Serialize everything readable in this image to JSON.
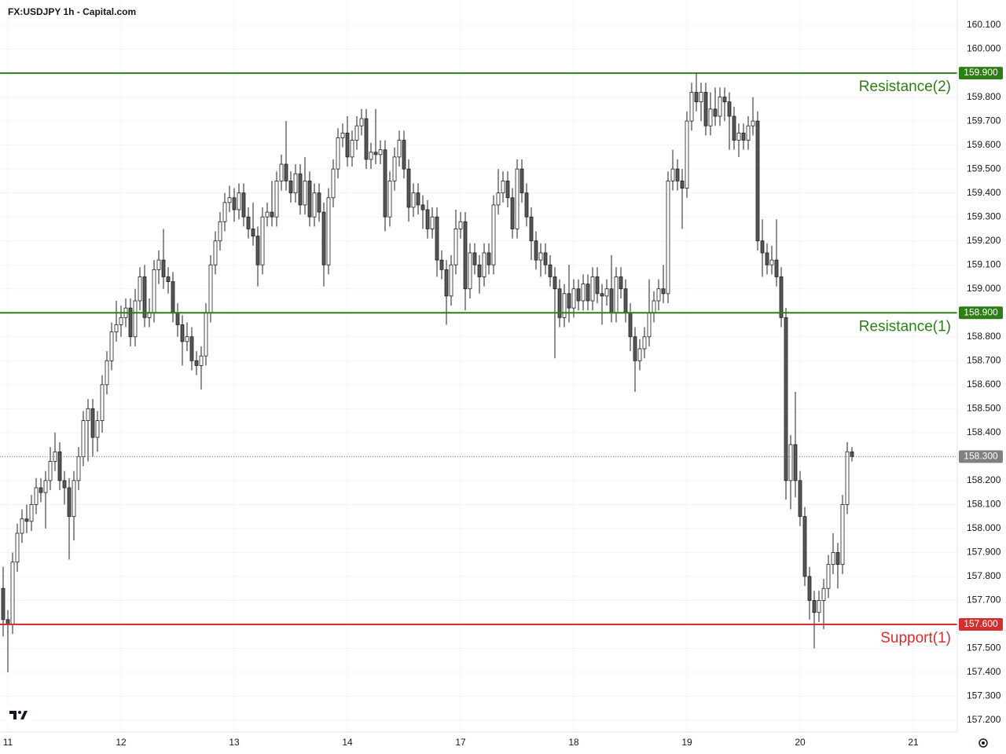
{
  "chart_data": {
    "type": "candlestick",
    "title": "FX:USDJPY 1h - Capital.com",
    "x": [
      -1,
      0,
      1,
      2,
      3,
      4,
      5,
      6,
      7,
      8,
      9,
      10,
      11,
      12,
      13,
      14,
      15,
      16,
      17,
      18,
      19,
      20,
      21,
      22,
      23,
      24,
      25,
      26,
      27,
      28,
      29,
      30,
      31,
      32,
      33,
      34,
      35,
      36,
      37,
      38,
      39,
      40,
      41,
      42,
      43,
      44,
      45,
      46,
      47,
      48,
      49,
      50,
      51,
      52,
      53,
      54,
      55,
      56,
      57,
      58,
      59,
      60,
      61,
      62,
      63,
      64,
      65,
      66,
      67,
      68,
      69,
      70,
      71,
      72,
      73,
      74,
      75,
      76,
      77,
      78,
      79,
      80,
      81,
      82,
      83,
      84,
      85,
      86,
      87,
      88,
      89,
      90,
      91,
      92,
      93,
      94,
      95,
      96,
      97,
      98,
      99,
      100,
      101,
      102,
      103,
      104,
      105,
      106,
      107,
      108,
      109,
      110,
      111,
      112,
      113,
      114,
      115,
      116,
      117,
      118,
      119,
      120,
      121,
      122,
      123,
      124,
      125,
      126,
      127,
      128,
      129,
      130,
      131,
      132,
      133,
      134,
      135,
      136,
      137,
      138,
      139,
      140,
      141,
      142,
      143,
      144,
      145,
      146,
      147,
      148,
      149,
      150,
      151,
      152,
      153,
      154,
      155,
      156,
      157,
      158,
      159,
      160,
      161,
      162,
      163,
      164,
      165,
      166,
      167,
      168,
      169,
      170,
      171,
      172,
      173,
      174,
      175,
      176,
      177,
      178,
      179
    ],
    "open": [
      157.75,
      157.62,
      157.6,
      157.86,
      157.98,
      158.04,
      158.03,
      158.1,
      158.17,
      158.15,
      158.2,
      158.28,
      158.32,
      158.2,
      158.17,
      158.05,
      158.2,
      158.3,
      158.45,
      158.5,
      158.38,
      158.45,
      158.6,
      158.7,
      158.82,
      158.85,
      158.88,
      158.92,
      158.8,
      158.95,
      159.05,
      158.88,
      158.9,
      159.08,
      159.12,
      159.05,
      159.03,
      158.9,
      158.85,
      158.78,
      158.8,
      158.7,
      158.68,
      158.72,
      158.9,
      159.1,
      159.2,
      159.28,
      159.36,
      159.38,
      159.33,
      159.4,
      159.3,
      159.25,
      159.22,
      159.1,
      159.3,
      159.32,
      159.3,
      159.45,
      159.52,
      159.45,
      159.4,
      159.48,
      159.35,
      159.45,
      159.3,
      159.4,
      159.32,
      159.1,
      159.38,
      159.5,
      159.63,
      159.65,
      159.55,
      159.62,
      159.68,
      159.71,
      159.54,
      159.57,
      159.56,
      159.58,
      159.3,
      159.45,
      159.55,
      159.62,
      159.5,
      159.34,
      159.4,
      159.35,
      159.33,
      159.25,
      159.3,
      159.12,
      159.08,
      158.97,
      159.1,
      159.25,
      159.28,
      159.0,
      159.15,
      159.1,
      159.05,
      159.15,
      159.1,
      159.35,
      159.4,
      159.45,
      159.38,
      159.25,
      159.5,
      159.4,
      159.3,
      159.2,
      159.12,
      159.15,
      159.1,
      159.05,
      159.0,
      158.88,
      158.98,
      158.92,
      159.0,
      158.95,
      159.02,
      158.95,
      159.05,
      158.98,
      158.97,
      159.0,
      158.9,
      159.05,
      159.0,
      158.9,
      158.8,
      158.7,
      158.75,
      158.8,
      158.9,
      158.95,
      159.0,
      158.98,
      159.45,
      159.5,
      159.45,
      159.42,
      159.7,
      159.82,
      159.78,
      159.82,
      159.68,
      159.75,
      159.72,
      159.8,
      159.78,
      159.72,
      159.62,
      159.65,
      159.62,
      159.68,
      159.7,
      159.2,
      159.15,
      159.1,
      159.12,
      159.05,
      158.88,
      158.2,
      158.35,
      158.2,
      158.05,
      157.8,
      157.7,
      157.65,
      157.7,
      157.75,
      157.85,
      157.9,
      157.85,
      158.1,
      158.32
    ],
    "high": [
      157.84,
      157.66,
      157.9,
      158.02,
      158.08,
      158.1,
      158.14,
      158.21,
      158.21,
      158.24,
      158.34,
      158.4,
      158.36,
      158.24,
      158.21,
      158.24,
      158.34,
      158.49,
      158.54,
      158.54,
      158.49,
      158.64,
      158.74,
      158.86,
      158.95,
      158.93,
      158.96,
      158.96,
      159.0,
      159.09,
      159.1,
      158.96,
      159.12,
      159.16,
      159.25,
      159.09,
      159.07,
      158.94,
      158.89,
      158.86,
      158.84,
      158.74,
      158.76,
      158.94,
      159.14,
      159.24,
      159.32,
      159.4,
      159.43,
      159.42,
      159.44,
      159.44,
      159.34,
      159.36,
      159.26,
      159.34,
      159.36,
      159.45,
      159.49,
      159.56,
      159.7,
      159.49,
      159.52,
      159.52,
      159.55,
      159.49,
      159.44,
      159.44,
      159.36,
      159.42,
      159.54,
      159.67,
      159.69,
      159.72,
      159.66,
      159.72,
      159.75,
      159.75,
      159.61,
      159.75,
      159.62,
      159.62,
      159.49,
      159.59,
      159.66,
      159.66,
      159.54,
      159.44,
      159.44,
      159.39,
      159.37,
      159.34,
      159.34,
      159.16,
      159.12,
      159.14,
      159.33,
      159.32,
      159.32,
      159.19,
      159.19,
      159.14,
      159.19,
      159.19,
      159.39,
      159.5,
      159.49,
      159.49,
      159.42,
      159.54,
      159.54,
      159.44,
      159.34,
      159.24,
      159.19,
      159.19,
      159.14,
      159.09,
      159.04,
      159.02,
      159.1,
      159.04,
      159.04,
      159.06,
      159.06,
      159.09,
      159.09,
      159.02,
      159.04,
      159.14,
      159.09,
      159.09,
      159.04,
      158.94,
      158.84,
      158.79,
      158.84,
      159.04,
      158.99,
      159.04,
      159.1,
      159.49,
      159.58,
      159.54,
      159.5,
      159.74,
      159.86,
      159.9,
      159.86,
      159.86,
      159.82,
      159.84,
      159.84,
      159.84,
      159.82,
      159.76,
      159.69,
      159.69,
      159.72,
      159.8,
      159.74,
      159.29,
      159.19,
      159.18,
      159.29,
      159.09,
      158.92,
      158.39,
      158.57,
      158.24,
      158.09,
      157.84,
      157.74,
      157.74,
      157.79,
      157.89,
      157.98,
      157.94,
      158.14,
      158.36,
      158.34
    ],
    "low": [
      157.55,
      157.4,
      157.56,
      157.82,
      157.94,
      157.98,
      157.99,
      158.06,
      158.11,
      158.0,
      158.16,
      158.24,
      158.16,
      158.1,
      157.87,
      157.95,
      158.16,
      158.26,
      158.28,
      158.3,
      158.32,
      158.4,
      158.56,
      158.66,
      158.78,
      158.8,
      158.84,
      158.76,
      158.76,
      158.91,
      158.84,
      158.84,
      158.86,
      159.02,
      159.0,
      158.98,
      158.86,
      158.8,
      158.68,
      158.74,
      158.66,
      158.64,
      158.58,
      158.68,
      158.86,
      159.06,
      159.16,
      159.24,
      159.32,
      159.28,
      159.29,
      159.26,
      159.21,
      159.18,
      159.01,
      159.06,
      159.26,
      159.26,
      159.26,
      159.41,
      159.41,
      159.36,
      159.36,
      159.31,
      159.31,
      159.26,
      159.26,
      159.28,
      159.01,
      159.06,
      159.34,
      159.46,
      159.59,
      159.51,
      159.51,
      159.58,
      159.64,
      159.5,
      159.5,
      159.52,
      159.52,
      159.24,
      159.26,
      159.41,
      159.51,
      159.46,
      159.28,
      159.3,
      159.31,
      159.25,
      159.21,
      159.21,
      159.05,
      159.04,
      158.85,
      158.93,
      159.06,
      159.21,
      158.91,
      158.96,
      159.06,
      158.98,
      159.01,
      159.06,
      159.06,
      159.31,
      159.36,
      159.34,
      159.21,
      159.21,
      159.36,
      159.26,
      159.12,
      159.08,
      159.05,
      159.06,
      159.01,
      158.71,
      158.84,
      158.84,
      158.86,
      158.88,
      158.91,
      158.91,
      158.91,
      158.91,
      158.94,
      158.85,
      158.93,
      158.86,
      158.86,
      158.96,
      158.86,
      158.74,
      158.57,
      158.66,
      158.71,
      158.76,
      158.86,
      158.91,
      158.94,
      158.94,
      159.41,
      159.41,
      159.25,
      159.38,
      159.66,
      159.74,
      159.7,
      159.64,
      159.64,
      159.68,
      159.68,
      159.7,
      159.58,
      159.58,
      159.55,
      159.58,
      159.58,
      159.64,
      159.16,
      159.05,
      159.06,
      159.06,
      159.01,
      158.84,
      158.12,
      158.08,
      158.13,
      158.01,
      157.76,
      157.62,
      157.5,
      157.61,
      157.58,
      157.71,
      157.81,
      157.75,
      157.81,
      158.06,
      158.28
    ],
    "close": [
      157.62,
      157.6,
      157.86,
      157.98,
      158.04,
      158.03,
      158.1,
      158.17,
      158.15,
      158.2,
      158.28,
      158.32,
      158.2,
      158.17,
      158.05,
      158.2,
      158.3,
      158.45,
      158.5,
      158.38,
      158.45,
      158.6,
      158.7,
      158.82,
      158.85,
      158.88,
      158.92,
      158.8,
      158.95,
      159.05,
      158.88,
      158.9,
      159.08,
      159.12,
      159.05,
      159.03,
      158.9,
      158.85,
      158.78,
      158.8,
      158.7,
      158.68,
      158.72,
      158.9,
      159.1,
      159.2,
      159.28,
      159.36,
      159.38,
      159.33,
      159.4,
      159.3,
      159.25,
      159.22,
      159.1,
      159.3,
      159.32,
      159.3,
      159.45,
      159.52,
      159.45,
      159.4,
      159.48,
      159.35,
      159.45,
      159.3,
      159.4,
      159.32,
      159.1,
      159.38,
      159.5,
      159.63,
      159.65,
      159.55,
      159.62,
      159.68,
      159.71,
      159.54,
      159.57,
      159.56,
      159.58,
      159.3,
      159.45,
      159.55,
      159.62,
      159.5,
      159.34,
      159.4,
      159.35,
      159.33,
      159.25,
      159.3,
      159.12,
      159.08,
      158.97,
      159.1,
      159.25,
      159.28,
      159.0,
      159.15,
      159.1,
      159.05,
      159.15,
      159.1,
      159.35,
      159.4,
      159.45,
      159.38,
      159.25,
      159.5,
      159.4,
      159.3,
      159.2,
      159.12,
      159.15,
      159.1,
      159.05,
      159.0,
      158.88,
      158.98,
      158.92,
      159.0,
      158.95,
      159.02,
      158.95,
      159.05,
      158.98,
      158.97,
      159.0,
      158.9,
      159.05,
      159.0,
      158.9,
      158.8,
      158.7,
      158.75,
      158.8,
      158.9,
      158.95,
      159.0,
      158.98,
      159.45,
      159.5,
      159.45,
      159.42,
      159.7,
      159.82,
      159.78,
      159.82,
      159.68,
      159.75,
      159.72,
      159.8,
      159.78,
      159.72,
      159.62,
      159.65,
      159.62,
      159.68,
      159.7,
      159.2,
      159.15,
      159.1,
      159.12,
      159.05,
      158.88,
      158.2,
      158.35,
      158.2,
      158.05,
      157.8,
      157.7,
      157.65,
      157.7,
      157.75,
      157.85,
      157.9,
      157.85,
      158.1,
      158.32,
      158.3
    ],
    "up_color": "#ffffff",
    "down_color": "#575757",
    "wick_color": "#1e1e1e",
    "xlim": [
      -1.667,
      201.333
    ],
    "xticks": [
      {
        "value": 0,
        "label": "11"
      },
      {
        "value": 24,
        "label": "12"
      },
      {
        "value": 48,
        "label": "13"
      },
      {
        "value": 72,
        "label": "14"
      },
      {
        "value": 96,
        "label": "17"
      },
      {
        "value": 120,
        "label": "18"
      },
      {
        "value": 144,
        "label": "19"
      },
      {
        "value": 168,
        "label": "20"
      },
      {
        "value": 192,
        "label": "21"
      }
    ],
    "ylim": [
      157.151,
      160.205
    ],
    "yticks": [
      {
        "value": 157.2,
        "label": "157.200"
      },
      {
        "value": 157.3,
        "label": "157.300"
      },
      {
        "value": 157.4,
        "label": "157.400"
      },
      {
        "value": 157.5,
        "label": "157.500"
      },
      {
        "value": 157.6,
        "label": "157.600"
      },
      {
        "value": 157.7,
        "label": "157.700"
      },
      {
        "value": 157.8,
        "label": "157.800"
      },
      {
        "value": 157.9,
        "label": "157.900"
      },
      {
        "value": 158.0,
        "label": "158.000"
      },
      {
        "value": 158.1,
        "label": "158.100"
      },
      {
        "value": 158.2,
        "label": "158.200"
      },
      {
        "value": 158.3,
        "label": "158.300"
      },
      {
        "value": 158.4,
        "label": "158.400"
      },
      {
        "value": 158.5,
        "label": "158.500"
      },
      {
        "value": 158.6,
        "label": "158.600"
      },
      {
        "value": 158.7,
        "label": "158.700"
      },
      {
        "value": 158.8,
        "label": "158.800"
      },
      {
        "value": 158.9,
        "label": "158.900"
      },
      {
        "value": 159.0,
        "label": "159.000"
      },
      {
        "value": 159.1,
        "label": "159.100"
      },
      {
        "value": 159.2,
        "label": "159.200"
      },
      {
        "value": 159.3,
        "label": "159.300"
      },
      {
        "value": 159.4,
        "label": "159.400"
      },
      {
        "value": 159.5,
        "label": "159.500"
      },
      {
        "value": 159.6,
        "label": "159.600"
      },
      {
        "value": 159.7,
        "label": "159.700"
      },
      {
        "value": 159.8,
        "label": "159.800"
      },
      {
        "value": 159.9,
        "label": "159.900"
      },
      {
        "value": 160.0,
        "label": "160.000"
      },
      {
        "value": 160.1,
        "label": "160.100"
      }
    ],
    "grid": true,
    "levels": [
      {
        "name": "Resistance(2)",
        "value": 159.9,
        "label": "159.900",
        "color": "#2e7d16"
      },
      {
        "name": "Resistance(1)",
        "value": 158.9,
        "label": "158.900",
        "color": "#2e7d16"
      },
      {
        "name": "Support(1)",
        "value": 157.6,
        "label": "157.600",
        "color": "#d32f2f"
      }
    ],
    "last_price": {
      "value": 158.3,
      "label": "158.300",
      "color": "#808080"
    }
  }
}
